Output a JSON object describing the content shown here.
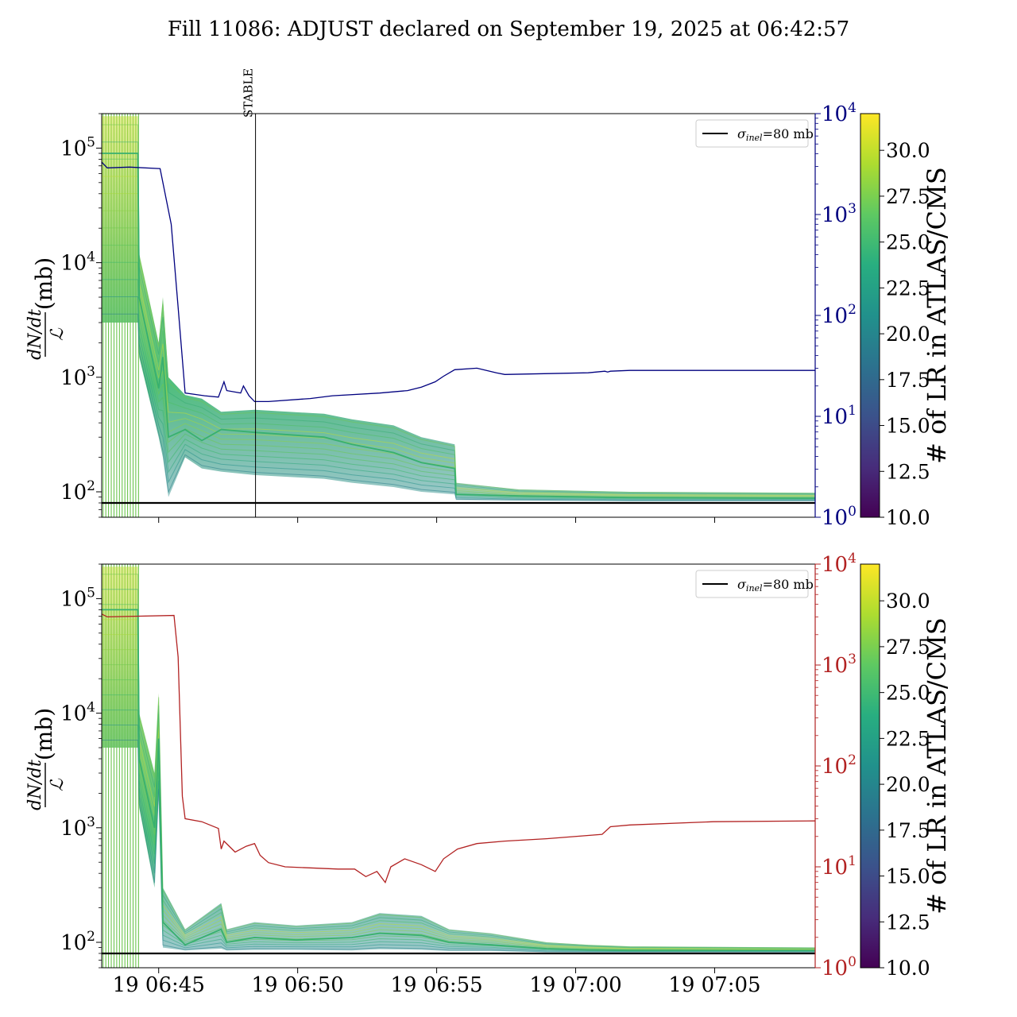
{
  "title": "Fill 11086: ADJUST declared on September 19, 2025 at 06:42:57",
  "colors": {
    "blue_axis": "#00007f",
    "red_axis": "#b22222",
    "sigma_line": "#000000",
    "band_low": "#2a7f8a",
    "band_mid": "#3bb86a",
    "band_high": "#c6dd3a"
  },
  "chart_data": [
    {
      "type": "line",
      "name": "top-panel",
      "ylabel": "dN/dt / ℒ (mb)",
      "ylabel_num": "dN/dt",
      "ylabel_den": "ℒ",
      "ylabel_unit": "(mb)",
      "yscale": "log",
      "ylim": [
        60,
        200000
      ],
      "yticks": [
        {
          "value": 100,
          "base": "10",
          "exp": "2"
        },
        {
          "value": 1000,
          "base": "10",
          "exp": "3"
        },
        {
          "value": 10000,
          "base": "10",
          "exp": "4"
        },
        {
          "value": 100000,
          "base": "10",
          "exp": "5"
        }
      ],
      "xlim": [
        "06:42:57",
        "07:08:37"
      ],
      "xticks": [
        "19 06:45",
        "19 06:50",
        "19 06:55",
        "19 07:00",
        "19 07:05"
      ],
      "show_xticklabels": false,
      "right_axis": {
        "yscale": "log",
        "ylim": [
          1,
          10000
        ],
        "color": "#00007f",
        "ticks": [
          {
            "value": 1,
            "base": "10",
            "exp": "0"
          },
          {
            "value": 10,
            "base": "10",
            "exp": "1"
          },
          {
            "value": 100,
            "base": "10",
            "exp": "2"
          },
          {
            "value": 1000,
            "base": "10",
            "exp": "3"
          },
          {
            "value": 10000,
            "base": "10",
            "exp": "4"
          }
        ]
      },
      "legend": {
        "placement": "top-right",
        "label_symbol": "σ",
        "label_sub": "inel",
        "label_rest": "=80 mb"
      },
      "sigma_inel": 80,
      "annotation": {
        "text": "STABLE",
        "x": "06:48:29"
      },
      "band_upper": [
        [
          0,
          190000
        ],
        [
          1.3,
          190000
        ],
        [
          1.35,
          12000
        ],
        [
          2.05,
          2000
        ],
        [
          2.2,
          5000
        ],
        [
          2.4,
          1000
        ],
        [
          3.0,
          700
        ],
        [
          3.6,
          650
        ],
        [
          4.3,
          500
        ],
        [
          5.5,
          520
        ],
        [
          8.0,
          480
        ],
        [
          9.0,
          430
        ],
        [
          10.5,
          380
        ],
        [
          11.5,
          300
        ],
        [
          12.7,
          260
        ],
        [
          12.75,
          120
        ],
        [
          15.0,
          105
        ],
        [
          19.0,
          100
        ],
        [
          25.67,
          98
        ]
      ],
      "band_mid": [
        [
          0,
          90000
        ],
        [
          1.3,
          90000
        ],
        [
          1.35,
          5000
        ],
        [
          2.05,
          800
        ],
        [
          2.2,
          1500
        ],
        [
          2.4,
          300
        ],
        [
          3.0,
          350
        ],
        [
          3.6,
          280
        ],
        [
          4.3,
          350
        ],
        [
          5.5,
          330
        ],
        [
          8.0,
          300
        ],
        [
          9.0,
          260
        ],
        [
          10.5,
          220
        ],
        [
          11.5,
          180
        ],
        [
          12.7,
          160
        ],
        [
          12.75,
          95
        ],
        [
          15.0,
          92
        ],
        [
          19.0,
          89
        ],
        [
          25.67,
          88
        ]
      ],
      "band_lower": [
        [
          0,
          3000
        ],
        [
          1.3,
          3000
        ],
        [
          1.35,
          1500
        ],
        [
          2.05,
          300
        ],
        [
          2.2,
          200
        ],
        [
          2.4,
          90
        ],
        [
          3.0,
          200
        ],
        [
          3.6,
          160
        ],
        [
          4.3,
          150
        ],
        [
          5.5,
          140
        ],
        [
          8.0,
          130
        ],
        [
          9.0,
          120
        ],
        [
          10.5,
          110
        ],
        [
          11.5,
          100
        ],
        [
          12.7,
          95
        ],
        [
          12.75,
          85
        ],
        [
          15.0,
          84
        ],
        [
          19.0,
          83
        ],
        [
          25.67,
          83
        ]
      ],
      "right_series": [
        [
          0,
          3300
        ],
        [
          0.2,
          2900
        ],
        [
          1.0,
          2950
        ],
        [
          2.1,
          2850
        ],
        [
          2.5,
          800
        ],
        [
          2.75,
          120
        ],
        [
          3.0,
          17
        ],
        [
          3.7,
          16
        ],
        [
          4.2,
          15.5
        ],
        [
          4.4,
          22
        ],
        [
          4.5,
          18
        ],
        [
          5.0,
          17
        ],
        [
          5.1,
          20
        ],
        [
          5.3,
          16
        ],
        [
          5.5,
          14
        ],
        [
          6.0,
          14
        ],
        [
          7.5,
          15
        ],
        [
          8.3,
          16
        ],
        [
          10.0,
          17
        ],
        [
          11.0,
          18
        ],
        [
          11.5,
          19.5
        ],
        [
          12.0,
          22
        ],
        [
          12.3,
          25
        ],
        [
          12.7,
          29
        ],
        [
          13.5,
          30
        ],
        [
          14.2,
          27
        ],
        [
          14.5,
          26
        ],
        [
          17.5,
          27
        ],
        [
          18.1,
          28
        ],
        [
          18.2,
          27.5
        ],
        [
          18.3,
          28
        ],
        [
          19.0,
          28.5
        ],
        [
          22.0,
          28.5
        ],
        [
          23.0,
          28.5
        ],
        [
          25.67,
          28.5
        ]
      ]
    },
    {
      "type": "line",
      "name": "bottom-panel",
      "ylabel": "dN/dt / ℒ (mb)",
      "ylabel_num": "dN/dt",
      "ylabel_den": "ℒ",
      "ylabel_unit": "(mb)",
      "yscale": "log",
      "ylim": [
        60,
        200000
      ],
      "yticks": [
        {
          "value": 100,
          "base": "10",
          "exp": "2"
        },
        {
          "value": 1000,
          "base": "10",
          "exp": "3"
        },
        {
          "value": 10000,
          "base": "10",
          "exp": "4"
        },
        {
          "value": 100000,
          "base": "10",
          "exp": "5"
        }
      ],
      "xlim": [
        "06:42:57",
        "07:08:37"
      ],
      "xticks": [
        "19 06:45",
        "19 06:50",
        "19 06:55",
        "19 07:00",
        "19 07:05"
      ],
      "show_xticklabels": true,
      "right_axis": {
        "yscale": "log",
        "ylim": [
          1,
          10000
        ],
        "color": "#b22222",
        "ticks": [
          {
            "value": 1,
            "base": "10",
            "exp": "0"
          },
          {
            "value": 10,
            "base": "10",
            "exp": "1"
          },
          {
            "value": 100,
            "base": "10",
            "exp": "2"
          },
          {
            "value": 1000,
            "base": "10",
            "exp": "3"
          },
          {
            "value": 10000,
            "base": "10",
            "exp": "4"
          }
        ]
      },
      "legend": {
        "placement": "top-right",
        "label_symbol": "σ",
        "label_sub": "inel",
        "label_rest": "=80 mb"
      },
      "sigma_inel": 80,
      "band_upper": [
        [
          0,
          190000
        ],
        [
          1.3,
          190000
        ],
        [
          1.35,
          10000
        ],
        [
          1.9,
          3000
        ],
        [
          2.05,
          15000
        ],
        [
          2.2,
          300
        ],
        [
          3.0,
          130
        ],
        [
          4.3,
          220
        ],
        [
          4.5,
          130
        ],
        [
          5.5,
          150
        ],
        [
          7.0,
          140
        ],
        [
          9.0,
          150
        ],
        [
          10.0,
          180
        ],
        [
          11.5,
          170
        ],
        [
          12.5,
          130
        ],
        [
          14.0,
          120
        ],
        [
          16.0,
          100
        ],
        [
          17.5,
          95
        ],
        [
          19.0,
          92
        ],
        [
          25.67,
          90
        ]
      ],
      "band_mid": [
        [
          0,
          80000
        ],
        [
          1.3,
          80000
        ],
        [
          1.35,
          4000
        ],
        [
          1.9,
          1000
        ],
        [
          2.05,
          6000
        ],
        [
          2.2,
          150
        ],
        [
          3.0,
          95
        ],
        [
          4.3,
          130
        ],
        [
          4.5,
          100
        ],
        [
          5.5,
          110
        ],
        [
          7.0,
          105
        ],
        [
          9.0,
          110
        ],
        [
          10.0,
          120
        ],
        [
          11.5,
          115
        ],
        [
          12.5,
          100
        ],
        [
          14.0,
          95
        ],
        [
          16.0,
          88
        ],
        [
          17.5,
          86
        ],
        [
          19.0,
          85
        ],
        [
          25.67,
          85
        ]
      ],
      "band_lower": [
        [
          0,
          5000
        ],
        [
          1.3,
          5000
        ],
        [
          1.35,
          1500
        ],
        [
          1.9,
          300
        ],
        [
          2.05,
          2000
        ],
        [
          2.2,
          90
        ],
        [
          3.0,
          85
        ],
        [
          4.3,
          88
        ],
        [
          4.5,
          85
        ],
        [
          5.5,
          86
        ],
        [
          7.0,
          86
        ],
        [
          9.0,
          85
        ],
        [
          10.0,
          87
        ],
        [
          11.5,
          86
        ],
        [
          12.5,
          84
        ],
        [
          14.0,
          84
        ],
        [
          16.0,
          82
        ],
        [
          17.5,
          82
        ],
        [
          19.0,
          82
        ],
        [
          25.67,
          82
        ]
      ],
      "right_series": [
        [
          0,
          3200
        ],
        [
          0.2,
          3000
        ],
        [
          2.6,
          3100
        ],
        [
          2.75,
          1200
        ],
        [
          2.9,
          50
        ],
        [
          3.0,
          30
        ],
        [
          3.6,
          28
        ],
        [
          4.2,
          24
        ],
        [
          4.3,
          15
        ],
        [
          4.4,
          18
        ],
        [
          4.8,
          14
        ],
        [
          5.2,
          16
        ],
        [
          5.5,
          17
        ],
        [
          5.7,
          13
        ],
        [
          6.0,
          11
        ],
        [
          6.6,
          10
        ],
        [
          8.5,
          9.5
        ],
        [
          9.1,
          9.5
        ],
        [
          9.5,
          8
        ],
        [
          9.9,
          9
        ],
        [
          10.2,
          7
        ],
        [
          10.4,
          10
        ],
        [
          10.9,
          12
        ],
        [
          11.5,
          10.5
        ],
        [
          12.0,
          9
        ],
        [
          12.3,
          12
        ],
        [
          12.8,
          15
        ],
        [
          13.5,
          17
        ],
        [
          14.5,
          18
        ],
        [
          16.0,
          19
        ],
        [
          18.0,
          21
        ],
        [
          18.3,
          25
        ],
        [
          19.0,
          26
        ],
        [
          22.0,
          28
        ],
        [
          25.67,
          28.5
        ]
      ]
    }
  ],
  "colorbar": {
    "label": "# of LR in ATLAS/CMS",
    "range": [
      10.0,
      32.0
    ],
    "ticks": [
      "10.0",
      "12.5",
      "15.0",
      "17.5",
      "20.0",
      "22.5",
      "25.0",
      "27.5",
      "30.0"
    ],
    "tick_values": [
      10.0,
      12.5,
      15.0,
      17.5,
      20.0,
      22.5,
      25.0,
      27.5,
      30.0
    ]
  }
}
